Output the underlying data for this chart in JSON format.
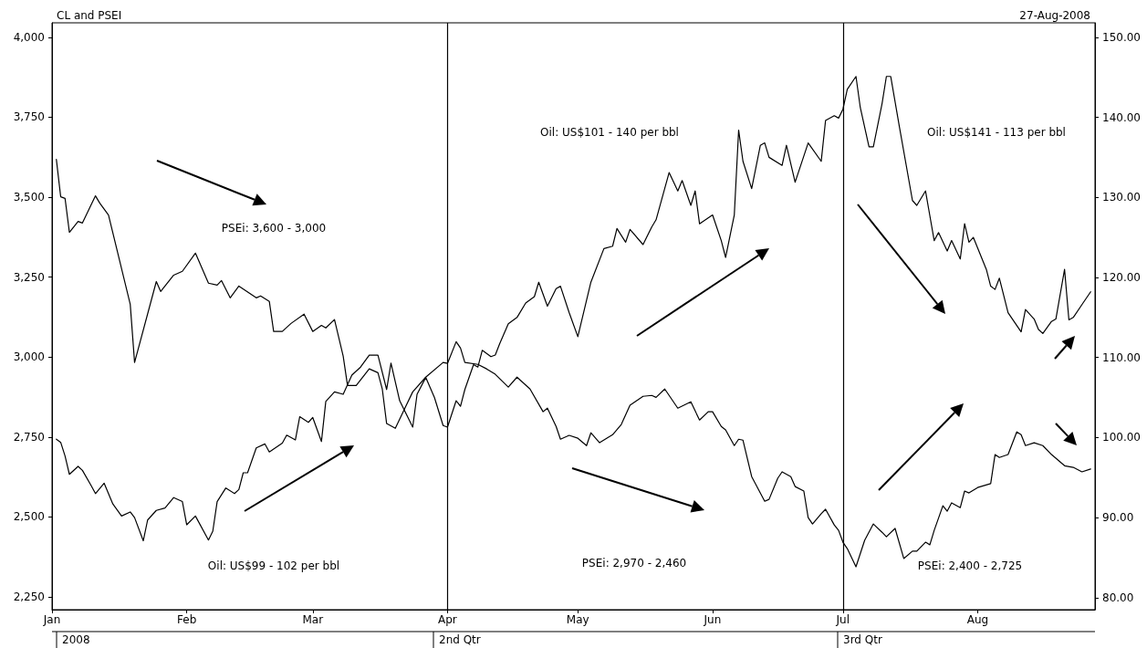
{
  "chart_data": {
    "type": "line",
    "title": "CL and PSEI",
    "subtitle": "27-Aug-2008",
    "marker": "none",
    "line_style": "solid",
    "xlim": [
      "2008-01-01",
      "2008-08-28"
    ],
    "xticks": [
      {
        "value": "2008-01-01",
        "label": "Jan"
      },
      {
        "value": "2008-02-01",
        "label": "Feb"
      },
      {
        "value": "2008-03-01",
        "label": "Mar"
      },
      {
        "value": "2008-04-01",
        "label": "Apr"
      },
      {
        "value": "2008-05-01",
        "label": "May"
      },
      {
        "value": "2008-06-01",
        "label": "Jun"
      },
      {
        "value": "2008-07-01",
        "label": "Jul"
      },
      {
        "value": "2008-08-01",
        "label": "Aug"
      }
    ],
    "ylim": [
      2210,
      4045
    ],
    "yticks": [
      {
        "value": 2250,
        "label": "2,250"
      },
      {
        "value": 2500,
        "label": "2,500"
      },
      {
        "value": 2750,
        "label": "2,750"
      },
      {
        "value": 3000,
        "label": "3,000"
      },
      {
        "value": 3250,
        "label": "3,250"
      },
      {
        "value": 3500,
        "label": "3,500"
      },
      {
        "value": 3750,
        "label": "3,750"
      },
      {
        "value": 4000,
        "label": "4,000"
      }
    ],
    "y2lim": [
      78.5,
      151.8
    ],
    "y2ticks": [
      {
        "value": 80,
        "label": "80.00"
      },
      {
        "value": 90,
        "label": "90.00"
      },
      {
        "value": 100,
        "label": "100.00"
      },
      {
        "value": 110,
        "label": "110.00"
      },
      {
        "value": 120,
        "label": "120.00"
      },
      {
        "value": 130,
        "label": "130.00"
      },
      {
        "value": 140,
        "label": "140.00"
      },
      {
        "value": 150,
        "label": "150.00"
      }
    ],
    "ref_lines": [
      {
        "axis": "x",
        "value": "2008-04-01",
        "color": "#000000"
      },
      {
        "axis": "x",
        "value": "2008-07-01",
        "color": "#000000"
      }
    ],
    "annotations": [
      "PSEi: 3,600 - 3,000",
      "Oil: US$99 - 102 per bbl",
      "Oil: US$101 - 140 per bbl",
      "PSEi: 2,970 - 2,460",
      "Oil: US$141 - 113 per bbl",
      "PSEi: 2,400 - 2,725",
      "2008",
      "2nd Qtr",
      "3rd Qtr"
    ],
    "series": [
      {
        "color": "#000000",
        "x": [
          "2008-01-02",
          "2008-01-03",
          "2008-01-04",
          "2008-01-05",
          "2008-01-07",
          "2008-01-08",
          "2008-01-11",
          "2008-01-12",
          "2008-01-14",
          "2008-01-19",
          "2008-01-20",
          "2008-01-25",
          "2008-01-26",
          "2008-01-29",
          "2008-01-31",
          "2008-02-03",
          "2008-02-06",
          "2008-02-08",
          "2008-02-09",
          "2008-02-11",
          "2008-02-13",
          "2008-02-17",
          "2008-02-18",
          "2008-02-20",
          "2008-02-21",
          "2008-02-23",
          "2008-02-25",
          "2008-02-28",
          "2008-03-01",
          "2008-03-03",
          "2008-03-04",
          "2008-03-06",
          "2008-03-08",
          "2008-03-09",
          "2008-03-11",
          "2008-03-14",
          "2008-03-16",
          "2008-03-17",
          "2008-03-18",
          "2008-03-20",
          "2008-03-22",
          "2008-03-24",
          "2008-03-27",
          "2008-03-31",
          "2008-04-01",
          "2008-04-03",
          "2008-04-04",
          "2008-04-05",
          "2008-04-08",
          "2008-04-10",
          "2008-04-12",
          "2008-04-15",
          "2008-04-17",
          "2008-04-20",
          "2008-04-23",
          "2008-04-24",
          "2008-04-26",
          "2008-04-27",
          "2008-04-29",
          "2008-05-01",
          "2008-05-03",
          "2008-05-04",
          "2008-05-06",
          "2008-05-09",
          "2008-05-11",
          "2008-05-13",
          "2008-05-16",
          "2008-05-18",
          "2008-05-19",
          "2008-05-21",
          "2008-05-24",
          "2008-05-27",
          "2008-05-29",
          "2008-05-31",
          "2008-06-01",
          "2008-06-03",
          "2008-06-04",
          "2008-06-06",
          "2008-06-07",
          "2008-06-08",
          "2008-06-10",
          "2008-06-13",
          "2008-06-14",
          "2008-06-16",
          "2008-06-17",
          "2008-06-19",
          "2008-06-20",
          "2008-06-22",
          "2008-06-23",
          "2008-06-24",
          "2008-06-26",
          "2008-06-27",
          "2008-06-29",
          "2008-06-30",
          "2008-07-01",
          "2008-07-02",
          "2008-07-04",
          "2008-07-06",
          "2008-07-08",
          "2008-07-10",
          "2008-07-11",
          "2008-07-13",
          "2008-07-15",
          "2008-07-17",
          "2008-07-18",
          "2008-07-20",
          "2008-07-21",
          "2008-07-22",
          "2008-07-24",
          "2008-07-25",
          "2008-07-26",
          "2008-07-28",
          "2008-07-29",
          "2008-07-30",
          "2008-08-01",
          "2008-08-04",
          "2008-08-05",
          "2008-08-06",
          "2008-08-08",
          "2008-08-10",
          "2008-08-11",
          "2008-08-12",
          "2008-08-14",
          "2008-08-16",
          "2008-08-18",
          "2008-08-21",
          "2008-08-23",
          "2008-08-25",
          "2008-08-27"
        ],
        "values": [
          3618,
          3501,
          3496,
          3390,
          3424,
          3419,
          3504,
          3481,
          3444,
          3165,
          2983,
          3236,
          3205,
          3256,
          3268,
          3325,
          3231,
          3225,
          3239,
          3185,
          3222,
          3185,
          3191,
          3174,
          3080,
          3080,
          3105,
          3134,
          3080,
          3099,
          3091,
          3117,
          3003,
          2911,
          2911,
          2963,
          2951,
          2900,
          2792,
          2777,
          2834,
          2891,
          2937,
          2983,
          2980,
          3048,
          3028,
          2983,
          2977,
          2963,
          2946,
          2906,
          2937,
          2900,
          2829,
          2840,
          2783,
          2743,
          2755,
          2746,
          2723,
          2763,
          2732,
          2757,
          2789,
          2849,
          2877,
          2880,
          2874,
          2900,
          2840,
          2860,
          2803,
          2829,
          2829,
          2783,
          2772,
          2723,
          2743,
          2740,
          2626,
          2549,
          2555,
          2621,
          2641,
          2626,
          2595,
          2581,
          2498,
          2478,
          2510,
          2524,
          2475,
          2458,
          2421,
          2401,
          2344,
          2427,
          2478,
          2452,
          2438,
          2464,
          2370,
          2393,
          2393,
          2421,
          2413,
          2458,
          2535,
          2518,
          2544,
          2529,
          2581,
          2575,
          2592,
          2604,
          2695,
          2686,
          2695,
          2766,
          2757,
          2723,
          2732,
          2723,
          2695,
          2660,
          2655,
          2641,
          2650
        ]
      },
      {
        "color": "#000000",
        "axis": "y2",
        "x": [
          "2008-01-02",
          "2008-01-03",
          "2008-01-04",
          "2008-01-05",
          "2008-01-07",
          "2008-01-08",
          "2008-01-10",
          "2008-01-11",
          "2008-01-13",
          "2008-01-15",
          "2008-01-17",
          "2008-01-19",
          "2008-01-20",
          "2008-01-22",
          "2008-01-23",
          "2008-01-25",
          "2008-01-27",
          "2008-01-29",
          "2008-01-31",
          "2008-02-01",
          "2008-02-03",
          "2008-02-06",
          "2008-02-07",
          "2008-02-08",
          "2008-02-10",
          "2008-02-12",
          "2008-02-13",
          "2008-02-14",
          "2008-02-15",
          "2008-02-17",
          "2008-02-19",
          "2008-02-20",
          "2008-02-23",
          "2008-02-24",
          "2008-02-26",
          "2008-02-27",
          "2008-02-29",
          "2008-03-01",
          "2008-03-03",
          "2008-03-04",
          "2008-03-06",
          "2008-03-08",
          "2008-03-10",
          "2008-03-12",
          "2008-03-14",
          "2008-03-16",
          "2008-03-18",
          "2008-03-19",
          "2008-03-21",
          "2008-03-24",
          "2008-03-25",
          "2008-03-27",
          "2008-03-29",
          "2008-03-31",
          "2008-04-01",
          "2008-04-03",
          "2008-04-04",
          "2008-04-05",
          "2008-04-07",
          "2008-04-08",
          "2008-04-09",
          "2008-04-11",
          "2008-04-12",
          "2008-04-13",
          "2008-04-15",
          "2008-04-17",
          "2008-04-19",
          "2008-04-21",
          "2008-04-22",
          "2008-04-24",
          "2008-04-26",
          "2008-04-27",
          "2008-04-29",
          "2008-05-01",
          "2008-05-04",
          "2008-05-07",
          "2008-05-09",
          "2008-05-10",
          "2008-05-12",
          "2008-05-13",
          "2008-05-16",
          "2008-05-18",
          "2008-05-19",
          "2008-05-22",
          "2008-05-24",
          "2008-05-25",
          "2008-05-27",
          "2008-05-28",
          "2008-05-29",
          "2008-06-01",
          "2008-06-03",
          "2008-06-04",
          "2008-06-06",
          "2008-06-07",
          "2008-06-08",
          "2008-06-10",
          "2008-06-12",
          "2008-06-13",
          "2008-06-14",
          "2008-06-17",
          "2008-06-18",
          "2008-06-20",
          "2008-06-23",
          "2008-06-26",
          "2008-06-27",
          "2008-06-29",
          "2008-06-30",
          "2008-07-01",
          "2008-07-02",
          "2008-07-04",
          "2008-07-05",
          "2008-07-07",
          "2008-07-08",
          "2008-07-10",
          "2008-07-11",
          "2008-07-12",
          "2008-07-14",
          "2008-07-17",
          "2008-07-18",
          "2008-07-20",
          "2008-07-22",
          "2008-07-23",
          "2008-07-25",
          "2008-07-26",
          "2008-07-28",
          "2008-07-29",
          "2008-07-30",
          "2008-07-31",
          "2008-08-03",
          "2008-08-04",
          "2008-08-05",
          "2008-08-06",
          "2008-08-08",
          "2008-08-11",
          "2008-08-12",
          "2008-08-14",
          "2008-08-15",
          "2008-08-16",
          "2008-08-18",
          "2008-08-19",
          "2008-08-21",
          "2008-08-22",
          "2008-08-23",
          "2008-08-25",
          "2008-08-27"
        ],
        "values": [
          99.8,
          99.4,
          97.7,
          95.4,
          96.4,
          95.9,
          94.0,
          93.0,
          94.3,
          91.7,
          90.2,
          90.7,
          90.0,
          87.1,
          89.7,
          90.9,
          91.2,
          92.5,
          92.0,
          89.1,
          90.2,
          87.2,
          88.3,
          92.0,
          93.7,
          93.0,
          93.5,
          95.6,
          95.6,
          98.7,
          99.2,
          98.2,
          99.3,
          100.3,
          99.7,
          102.6,
          101.9,
          102.5,
          99.5,
          104.5,
          105.7,
          105.4,
          107.8,
          108.8,
          110.3,
          110.3,
          106.0,
          109.3,
          104.6,
          101.3,
          105.4,
          107.5,
          105.0,
          101.5,
          101.3,
          104.6,
          103.9,
          106.0,
          109.1,
          108.8,
          110.9,
          110.1,
          110.3,
          111.7,
          114.2,
          115.0,
          116.8,
          117.6,
          119.4,
          116.4,
          118.6,
          118.9,
          115.6,
          112.6,
          119.4,
          123.6,
          123.9,
          126.1,
          124.4,
          126.0,
          124.1,
          126.3,
          127.2,
          133.1,
          130.8,
          132.1,
          129.0,
          130.8,
          126.7,
          127.8,
          124.6,
          122.5,
          127.8,
          138.4,
          134.5,
          131.1,
          136.5,
          136.8,
          135.0,
          134.0,
          136.5,
          131.9,
          136.8,
          134.5,
          139.6,
          140.2,
          139.9,
          141.0,
          143.5,
          145.1,
          141.2,
          136.3,
          136.3,
          141.7,
          145.1,
          145.1,
          138.8,
          129.6,
          129.0,
          130.8,
          124.6,
          125.6,
          123.3,
          124.6,
          122.3,
          126.7,
          124.4,
          125.0,
          121.0,
          118.9,
          118.5,
          119.9,
          115.6,
          113.2,
          116.0,
          114.8,
          113.5,
          113.0,
          114.5,
          114.8,
          121.0,
          114.7,
          115.0,
          116.6,
          118.2
        ]
      }
    ]
  }
}
